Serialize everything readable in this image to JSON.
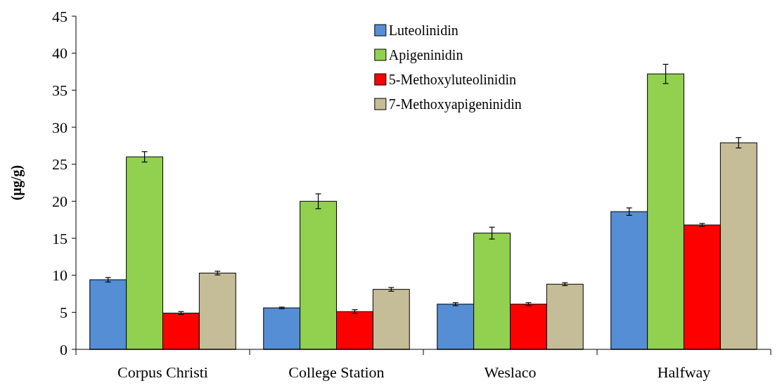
{
  "chart_data": {
    "type": "bar",
    "ylabel": "(μg/g)",
    "categories": [
      "Corpus Christi",
      "College Station",
      "Weslaco",
      "Halfway"
    ],
    "series": [
      {
        "name": "Luteolinidin",
        "color": "#558ed5",
        "values": [
          9.4,
          5.6,
          6.1,
          18.6
        ],
        "errors": [
          0.3,
          0.1,
          0.2,
          0.5
        ]
      },
      {
        "name": "Apigeninidin",
        "color": "#92d050",
        "values": [
          26.0,
          20.0,
          15.7,
          37.2
        ],
        "errors": [
          0.7,
          1.0,
          0.8,
          1.3
        ]
      },
      {
        "name": "5-Methoxyluteolinidin",
        "color": "#ff0000",
        "values": [
          4.9,
          5.1,
          6.1,
          16.8
        ],
        "errors": [
          0.2,
          0.25,
          0.2,
          0.2
        ]
      },
      {
        "name": "7-Methoxyapigeninidin",
        "color": "#c4bd97",
        "values": [
          10.3,
          8.1,
          8.8,
          27.9
        ],
        "errors": [
          0.25,
          0.25,
          0.2,
          0.7
        ]
      }
    ],
    "ylim": [
      0,
      45
    ],
    "yticks": [
      0,
      5,
      10,
      15,
      20,
      25,
      30,
      35,
      40,
      45
    ],
    "legend": "top",
    "grid": false
  }
}
